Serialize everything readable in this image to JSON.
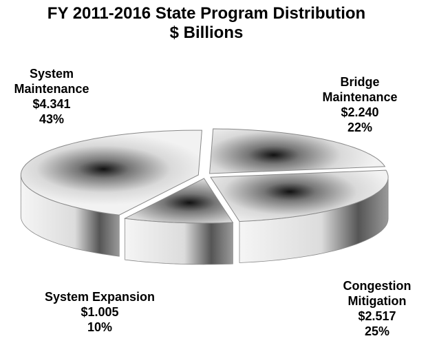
{
  "chart_data": {
    "type": "pie",
    "title": "FY 2011-2016 State Program Distribution",
    "subtitle": "$ Billions",
    "slices": [
      {
        "label": "System Maintenance",
        "label_lines": [
          "System",
          "Maintenance"
        ],
        "value": 4.341,
        "value_text": "$4.341",
        "percent": 43,
        "percent_text": "43%"
      },
      {
        "label": "Bridge Maintenance",
        "label_lines": [
          "Bridge",
          "Maintenance"
        ],
        "value": 2.24,
        "value_text": "$2.240",
        "percent": 22,
        "percent_text": "22%"
      },
      {
        "label": "Congestion Mitigation",
        "label_lines": [
          "Congestion",
          "Mitigation"
        ],
        "value": 2.517,
        "value_text": "$2.517",
        "percent": 25,
        "percent_text": "25%"
      },
      {
        "label": "System Expansion",
        "label_lines": [
          "System Expansion"
        ],
        "value": 1.005,
        "value_text": "$1.005",
        "percent": 10,
        "percent_text": "10%"
      }
    ],
    "style": "3d-exploded",
    "colors": {
      "top_light": "#f2f2f2",
      "top_dark": "#111111",
      "side_light": "#f5f5f5",
      "side_dark": "#555555",
      "edge": "#888888"
    }
  }
}
